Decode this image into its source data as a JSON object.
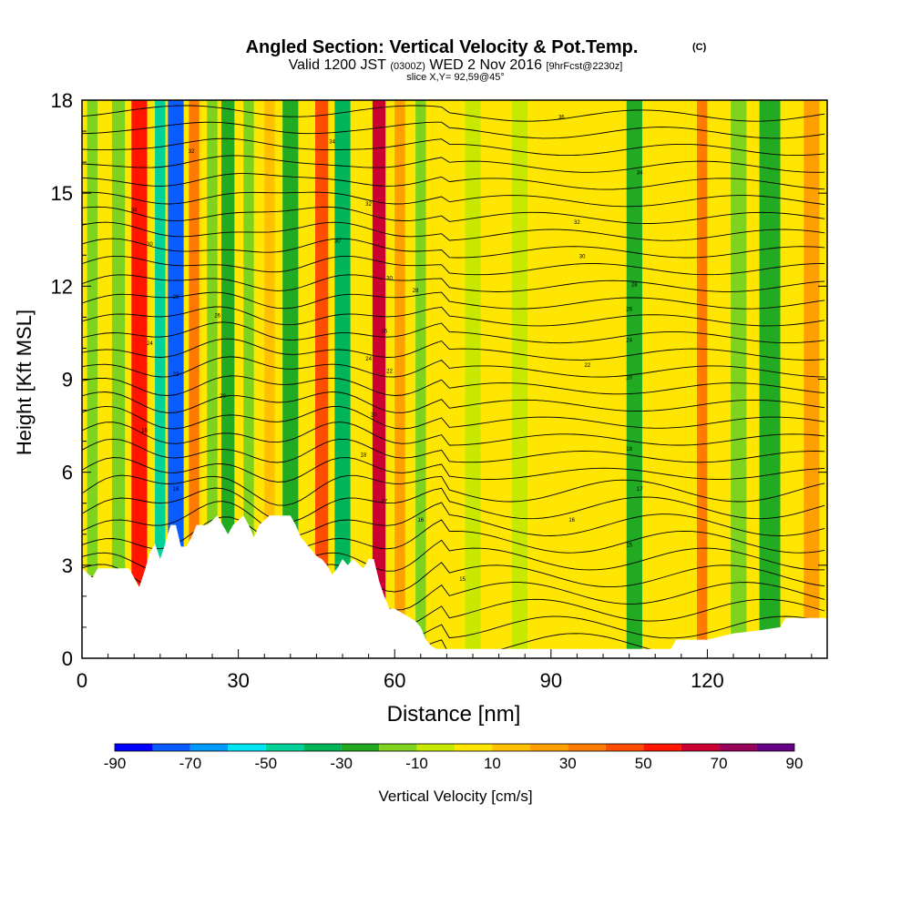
{
  "header": {
    "title_main": "Angled Section: Vertical Velocity & Pot.Temp.",
    "title_badge": "(C)",
    "valid_prefix": "Valid 1200 JST",
    "valid_zulu": "(0300Z)",
    "valid_date": "WED 2 Nov 2016",
    "valid_fcst": "[9hrFcst@2230z]",
    "slice_info": "slice X,Y= 92,59@45°"
  },
  "colorbar": {
    "title": "Vertical Velocity [cm/s]",
    "tick_labels": [
      "-90",
      "-70",
      "-50",
      "-30",
      "-10",
      "10",
      "30",
      "50",
      "70",
      "90"
    ],
    "colors": [
      "#0000ff",
      "#0a5cff",
      "#009bff",
      "#00e4f4",
      "#00d29a",
      "#00b45a",
      "#22aa22",
      "#7fd21e",
      "#c8e800",
      "#ffe600",
      "#ffc000",
      "#ff9f00",
      "#ff7a00",
      "#ff4d00",
      "#ff1500",
      "#cc0030",
      "#99005a",
      "#660088"
    ]
  },
  "chart_data": {
    "type": "heatmap",
    "title": "Angled Section: Vertical Velocity & Pot.Temp.",
    "xlabel": "Distance [nm]",
    "ylabel": "Height [Kft MSL]",
    "xlim": [
      0,
      143
    ],
    "ylim": [
      0,
      18
    ],
    "x_ticks": [
      0,
      30,
      60,
      90,
      120
    ],
    "y_ticks": [
      0,
      3,
      6,
      9,
      12,
      15,
      18
    ],
    "z_label": "Vertical Velocity [cm/s]",
    "z_levels": [
      -90,
      -80,
      -70,
      -60,
      -50,
      -40,
      -30,
      -20,
      -10,
      0,
      10,
      20,
      30,
      40,
      50,
      60,
      70,
      80,
      90
    ],
    "vertical_velocity_bands": [
      {
        "x": 2,
        "width": 2,
        "value": -15
      },
      {
        "x": 7,
        "width": 2.5,
        "value": -12
      },
      {
        "x": 11,
        "width": 3,
        "value": 55
      },
      {
        "x": 15,
        "width": 2,
        "value": -50
      },
      {
        "x": 18,
        "width": 3,
        "value": -80
      },
      {
        "x": 21.5,
        "width": 2,
        "value": 35
      },
      {
        "x": 25,
        "width": 2,
        "value": -20
      },
      {
        "x": 28,
        "width": 2.5,
        "value": -30
      },
      {
        "x": 32,
        "width": 2,
        "value": -12
      },
      {
        "x": 36,
        "width": 2,
        "value": 12
      },
      {
        "x": 40,
        "width": 3,
        "value": -30
      },
      {
        "x": 46,
        "width": 2.5,
        "value": 45
      },
      {
        "x": 50,
        "width": 3,
        "value": -35
      },
      {
        "x": 57,
        "width": 2.5,
        "value": 65
      },
      {
        "x": 61,
        "width": 2,
        "value": 20
      },
      {
        "x": 65,
        "width": 2,
        "value": -15
      },
      {
        "x": 75,
        "width": 3,
        "value": -10
      },
      {
        "x": 84,
        "width": 3,
        "value": -10
      },
      {
        "x": 106,
        "width": 3,
        "value": -22
      },
      {
        "x": 119,
        "width": 2,
        "value": 30
      },
      {
        "x": 126,
        "width": 3,
        "value": -12
      },
      {
        "x": 132,
        "width": 4,
        "value": -25
      },
      {
        "x": 140,
        "width": 3,
        "value": 25
      }
    ],
    "terrain": [
      [
        0,
        2.9
      ],
      [
        2,
        2.6
      ],
      [
        3,
        2.9
      ],
      [
        9,
        2.9
      ],
      [
        10,
        2.6
      ],
      [
        11,
        2.3
      ],
      [
        12,
        2.8
      ],
      [
        13,
        3.4
      ],
      [
        14,
        3.7
      ],
      [
        15,
        3.2
      ],
      [
        16,
        3.7
      ],
      [
        17,
        4.3
      ],
      [
        18,
        4.3
      ],
      [
        19,
        3.6
      ],
      [
        20,
        3.6
      ],
      [
        21,
        3.9
      ],
      [
        22,
        4.3
      ],
      [
        24,
        4.3
      ],
      [
        26,
        4.6
      ],
      [
        27,
        4.3
      ],
      [
        28,
        4.0
      ],
      [
        29,
        4.3
      ],
      [
        31,
        4.6
      ],
      [
        32,
        4.3
      ],
      [
        33,
        3.9
      ],
      [
        34,
        4.3
      ],
      [
        36,
        4.6
      ],
      [
        40,
        4.6
      ],
      [
        41,
        4.3
      ],
      [
        42,
        3.9
      ],
      [
        44,
        3.5
      ],
      [
        45,
        3.3
      ],
      [
        46,
        3.2
      ],
      [
        47,
        3.0
      ],
      [
        48,
        2.7
      ],
      [
        49,
        2.9
      ],
      [
        50,
        3.2
      ],
      [
        51,
        3.0
      ],
      [
        52,
        3.2
      ],
      [
        54,
        2.9
      ],
      [
        55,
        3.2
      ],
      [
        56,
        3.2
      ],
      [
        57,
        2.5
      ],
      [
        58,
        2.0
      ],
      [
        59,
        1.6
      ],
      [
        60,
        1.6
      ],
      [
        62,
        1.4
      ],
      [
        64,
        1.2
      ],
      [
        65,
        1.0
      ],
      [
        66,
        0.6
      ],
      [
        67,
        0.4
      ],
      [
        68,
        0.3
      ],
      [
        75,
        0.3
      ],
      [
        85,
        0.3
      ],
      [
        95,
        0.3
      ],
      [
        105,
        0.3
      ],
      [
        110,
        0.3
      ],
      [
        113,
        0.3
      ],
      [
        114,
        0.6
      ],
      [
        120,
        0.6
      ],
      [
        125,
        0.8
      ],
      [
        130,
        0.9
      ],
      [
        134,
        1.0
      ],
      [
        135,
        1.3
      ],
      [
        143,
        1.3
      ]
    ],
    "theta_labels": [
      {
        "x": 10,
        "y": 14.4,
        "label": "34"
      },
      {
        "x": 21,
        "y": 16.3,
        "label": "32"
      },
      {
        "x": 13,
        "y": 13.3,
        "label": "30"
      },
      {
        "x": 18,
        "y": 11.6,
        "label": "28"
      },
      {
        "x": 26,
        "y": 11.0,
        "label": "26"
      },
      {
        "x": 13,
        "y": 10.1,
        "label": "24"
      },
      {
        "x": 18,
        "y": 9.1,
        "label": "22"
      },
      {
        "x": 27,
        "y": 8.4,
        "label": "20"
      },
      {
        "x": 12,
        "y": 7.3,
        "label": "18"
      },
      {
        "x": 18,
        "y": 5.4,
        "label": "16"
      },
      {
        "x": 48,
        "y": 16.6,
        "label": "34"
      },
      {
        "x": 49,
        "y": 13.4,
        "label": "30"
      },
      {
        "x": 55,
        "y": 14.6,
        "label": "32"
      },
      {
        "x": 59,
        "y": 12.2,
        "label": "30"
      },
      {
        "x": 64,
        "y": 11.8,
        "label": "28"
      },
      {
        "x": 58,
        "y": 10.5,
        "label": "26"
      },
      {
        "x": 55,
        "y": 9.6,
        "label": "24"
      },
      {
        "x": 59,
        "y": 9.2,
        "label": "22"
      },
      {
        "x": 56,
        "y": 7.8,
        "label": "20"
      },
      {
        "x": 54,
        "y": 6.5,
        "label": "18"
      },
      {
        "x": 58,
        "y": 5.0,
        "label": "17"
      },
      {
        "x": 65,
        "y": 4.4,
        "label": "16"
      },
      {
        "x": 73,
        "y": 2.5,
        "label": "15"
      },
      {
        "x": 92,
        "y": 17.4,
        "label": "36"
      },
      {
        "x": 107,
        "y": 15.6,
        "label": "34"
      },
      {
        "x": 95,
        "y": 14.0,
        "label": "32"
      },
      {
        "x": 96,
        "y": 12.9,
        "label": "30"
      },
      {
        "x": 106,
        "y": 12.0,
        "label": "28"
      },
      {
        "x": 105,
        "y": 11.2,
        "label": "26"
      },
      {
        "x": 105,
        "y": 10.2,
        "label": "24"
      },
      {
        "x": 97,
        "y": 9.4,
        "label": "22"
      },
      {
        "x": 105,
        "y": 9.0,
        "label": "20"
      },
      {
        "x": 105,
        "y": 6.7,
        "label": "18"
      },
      {
        "x": 107,
        "y": 5.4,
        "label": "17"
      },
      {
        "x": 94,
        "y": 4.4,
        "label": "16"
      },
      {
        "x": 105,
        "y": 3.6,
        "label": "15"
      }
    ]
  }
}
